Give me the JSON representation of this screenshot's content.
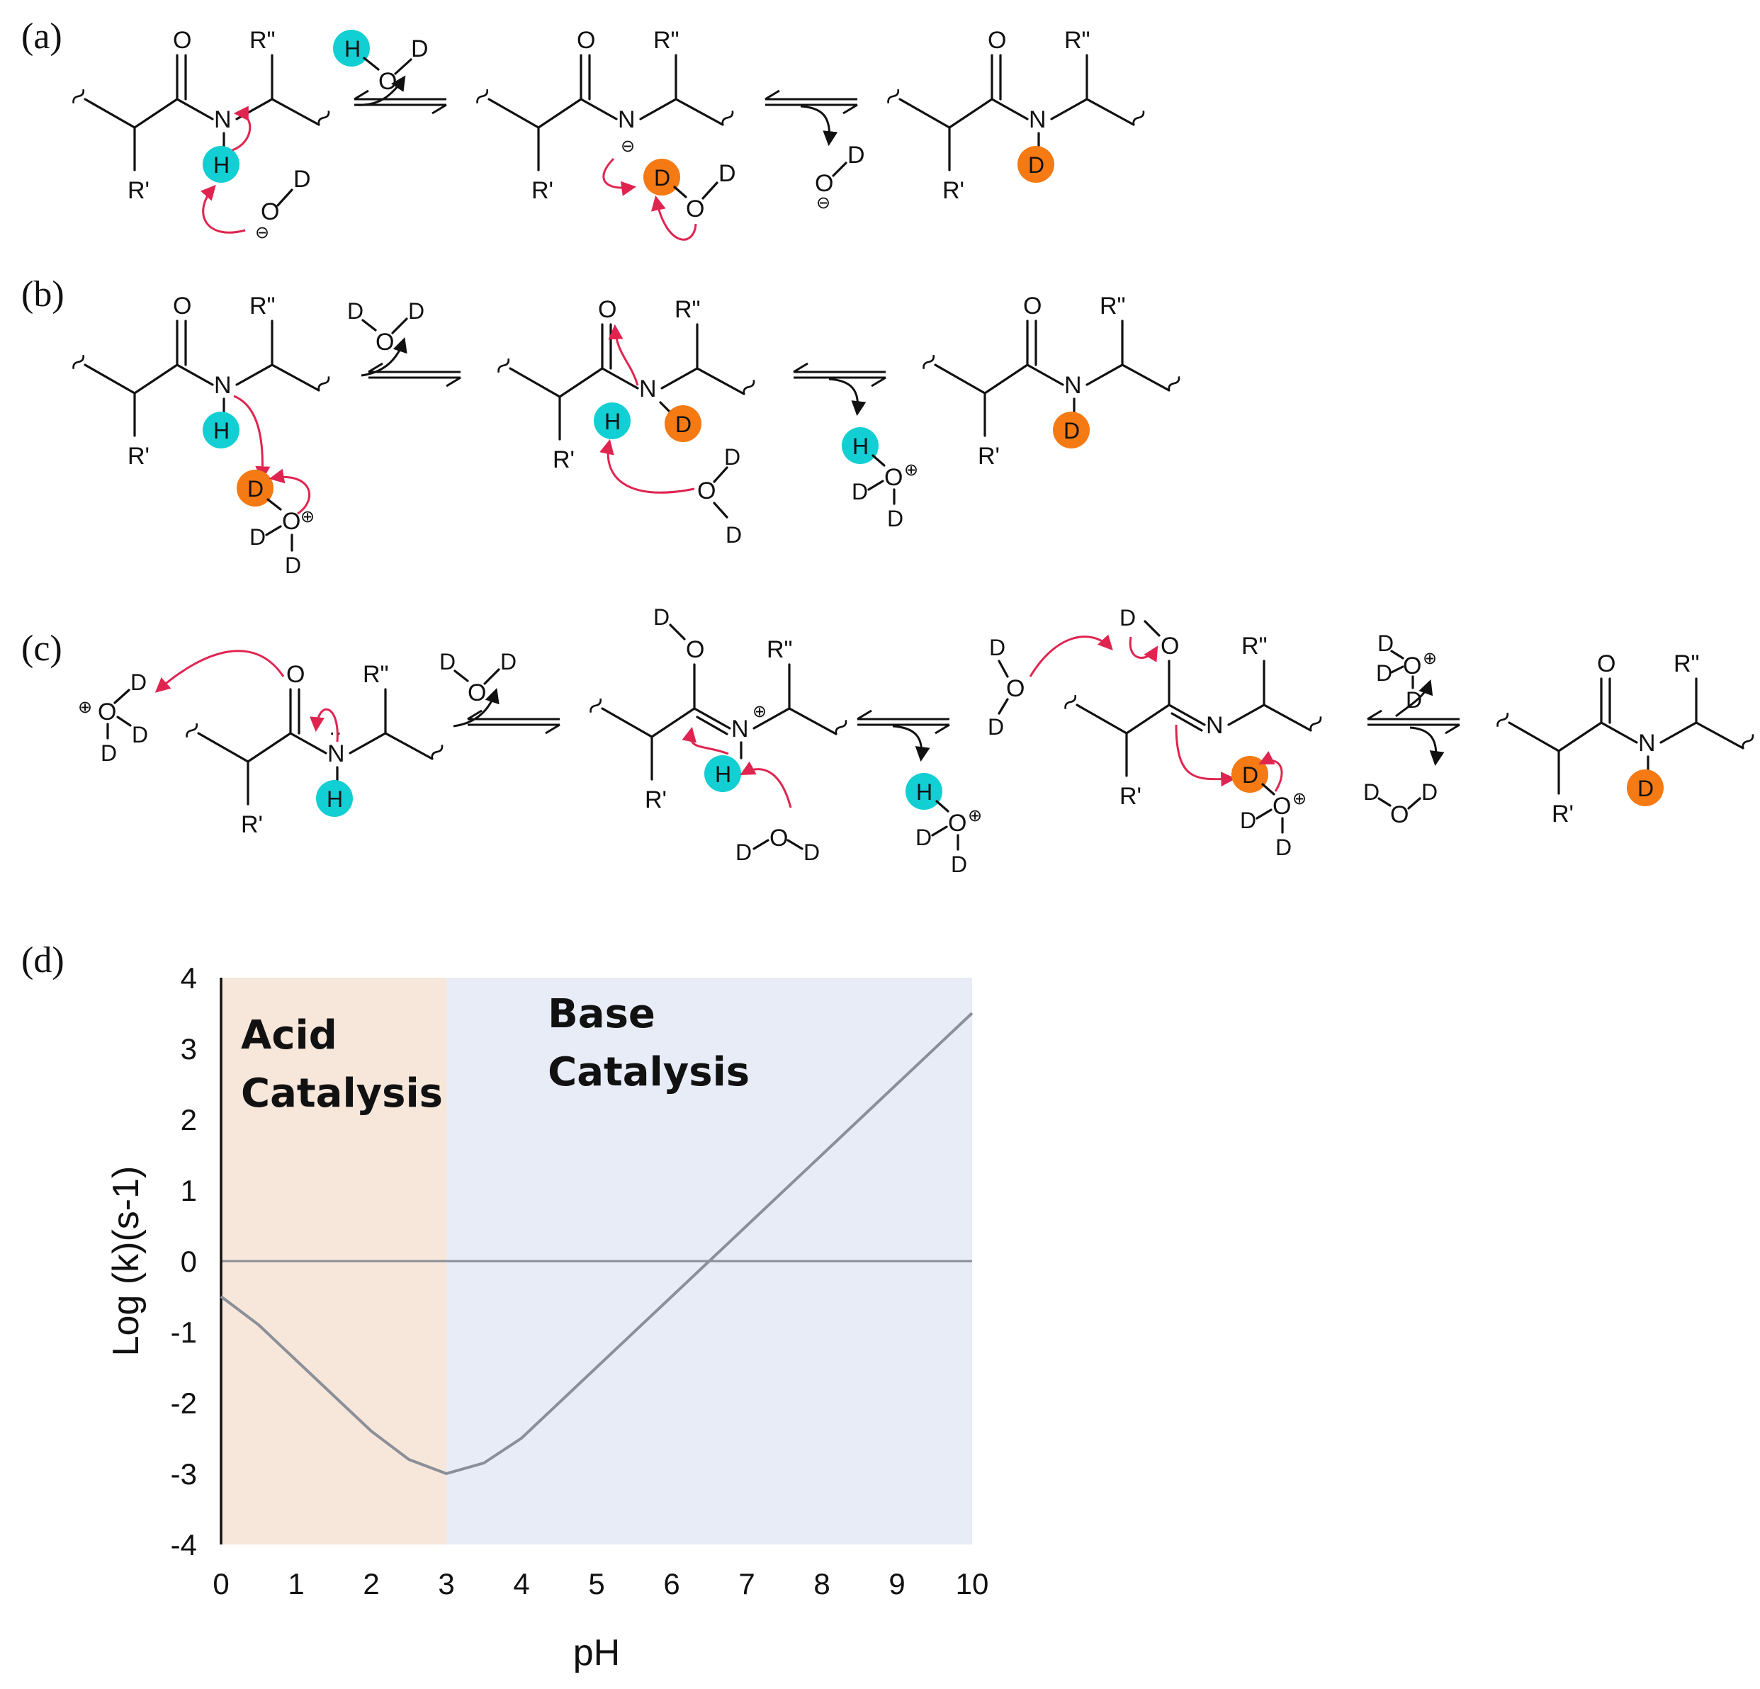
{
  "panels": {
    "a": "(a)",
    "b": "(b)",
    "c": "(c)",
    "d": "(d)"
  },
  "atoms": {
    "O": "O",
    "N": "N",
    "H": "H",
    "D": "D",
    "R1": "R'",
    "R2": "R\"",
    "minus": "⊖",
    "plus": "⊕",
    "lone_pair": "··"
  },
  "colors": {
    "hydrogen": "#12cfd3",
    "deuterium": "#f57a14",
    "arrow": "#e02450",
    "acid_region": "#f7e6da",
    "base_region": "#e7ecf6",
    "curve": "#8a8f98"
  },
  "chart_data": {
    "type": "line",
    "xlabel": "pH",
    "ylabel": "Log (k)(s-1)",
    "xlim": [
      0,
      10
    ],
    "ylim": [
      -4,
      4
    ],
    "x_ticks": [
      "0",
      "1",
      "2",
      "3",
      "4",
      "5",
      "6",
      "7",
      "8",
      "9",
      "10"
    ],
    "y_ticks": [
      "4",
      "3",
      "2",
      "1",
      "0",
      "-1",
      "-2",
      "-3",
      "-4"
    ],
    "regions": [
      {
        "label_line1": "Acid",
        "label_line2": "Catalysis",
        "from": 0,
        "to": 3
      },
      {
        "label_line1": "Base",
        "label_line2": "Catalysis",
        "from": 3,
        "to": 10
      }
    ],
    "series": [
      {
        "x": [
          0,
          0.5,
          1,
          1.5,
          2,
          2.5,
          3,
          3.5,
          4,
          5,
          6,
          7,
          8,
          9,
          10
        ],
        "y": [
          -0.5,
          -0.9,
          -1.4,
          -1.9,
          -2.4,
          -2.8,
          -3.0,
          -2.85,
          -2.5,
          -1.5,
          -0.5,
          0.5,
          1.5,
          2.5,
          3.5
        ]
      }
    ],
    "reference_line": 0
  }
}
